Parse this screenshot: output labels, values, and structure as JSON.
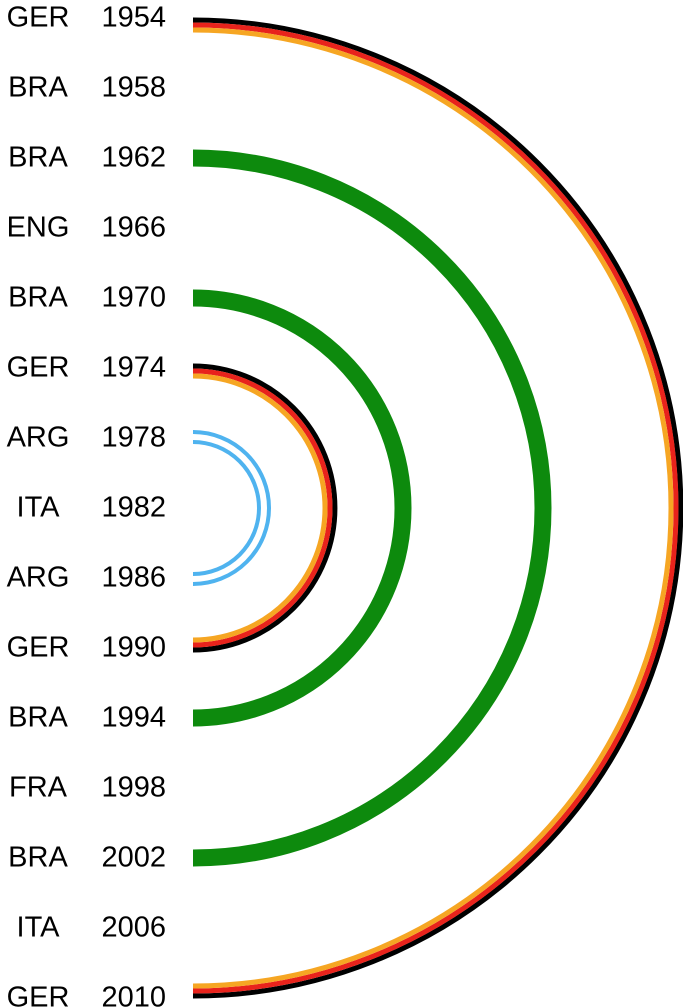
{
  "rows": [
    {
      "team": "GER",
      "year": 1954
    },
    {
      "team": "BRA",
      "year": 1958
    },
    {
      "team": "BRA",
      "year": 1962
    },
    {
      "team": "ENG",
      "year": 1966
    },
    {
      "team": "BRA",
      "year": 1970
    },
    {
      "team": "GER",
      "year": 1974
    },
    {
      "team": "ARG",
      "year": 1978
    },
    {
      "team": "ITA",
      "year": 1982
    },
    {
      "team": "ARG",
      "year": 1986
    },
    {
      "team": "GER",
      "year": 1990
    },
    {
      "team": "BRA",
      "year": 1994
    },
    {
      "team": "FRA",
      "year": 1998
    },
    {
      "team": "BRA",
      "year": 2002
    },
    {
      "team": "ITA",
      "year": 2006
    },
    {
      "team": "GER",
      "year": 2010
    }
  ]
}
